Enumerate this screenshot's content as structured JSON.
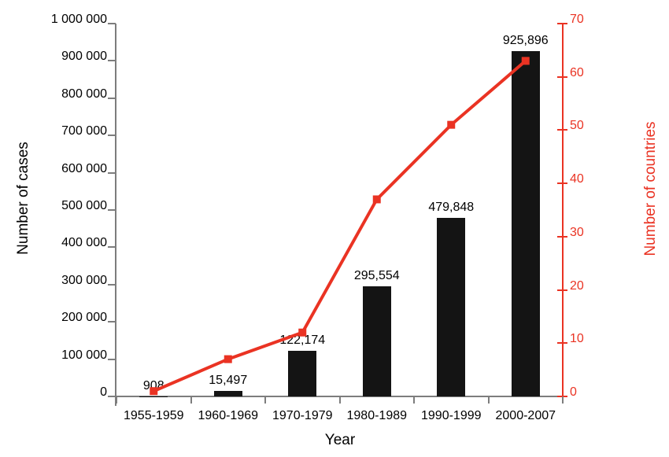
{
  "figure": {
    "background": "#ffffff",
    "text_color": "#000000",
    "axis_gray": "#7d7d7d"
  },
  "chart_data": {
    "type": "bar",
    "subtype": "bar-line-combo",
    "title": "",
    "categories": [
      "1955-1959",
      "1960-1969",
      "1970-1979",
      "1980-1989",
      "1990-1999",
      "2000-2007"
    ],
    "xlabel": "Year",
    "series": [
      {
        "name": "Number of cases",
        "type": "bar",
        "axis": "left",
        "color": "#141414",
        "values": [
          908,
          15497,
          122174,
          295554,
          479848,
          925896
        ],
        "value_labels": [
          "908",
          "15,497",
          "122,174",
          "295,554",
          "479,848",
          "925,896"
        ]
      },
      {
        "name": "Number of countries",
        "type": "line",
        "axis": "right",
        "color": "#ea3323",
        "marker": "square",
        "values": [
          1,
          7,
          12,
          37,
          51,
          63
        ]
      }
    ],
    "left_axis": {
      "label": "Number of cases",
      "min": 0,
      "max": 1000000,
      "step": 100000,
      "tick_labels": [
        "0",
        "100 000",
        "200 000",
        "300 000",
        "400 000",
        "500 000",
        "600 000",
        "700 000",
        "800 000",
        "900 000",
        "1 000 000"
      ],
      "line_color": "#7d7d7d",
      "text_color": "#000000"
    },
    "right_axis": {
      "label": "Number of countries",
      "min": 0,
      "max": 70,
      "step": 10,
      "tick_labels": [
        "0",
        "10",
        "20",
        "30",
        "40",
        "50",
        "60",
        "70"
      ],
      "line_color": "#ea3323",
      "text_color": "#ea3323"
    },
    "grid": false,
    "legend": false
  }
}
